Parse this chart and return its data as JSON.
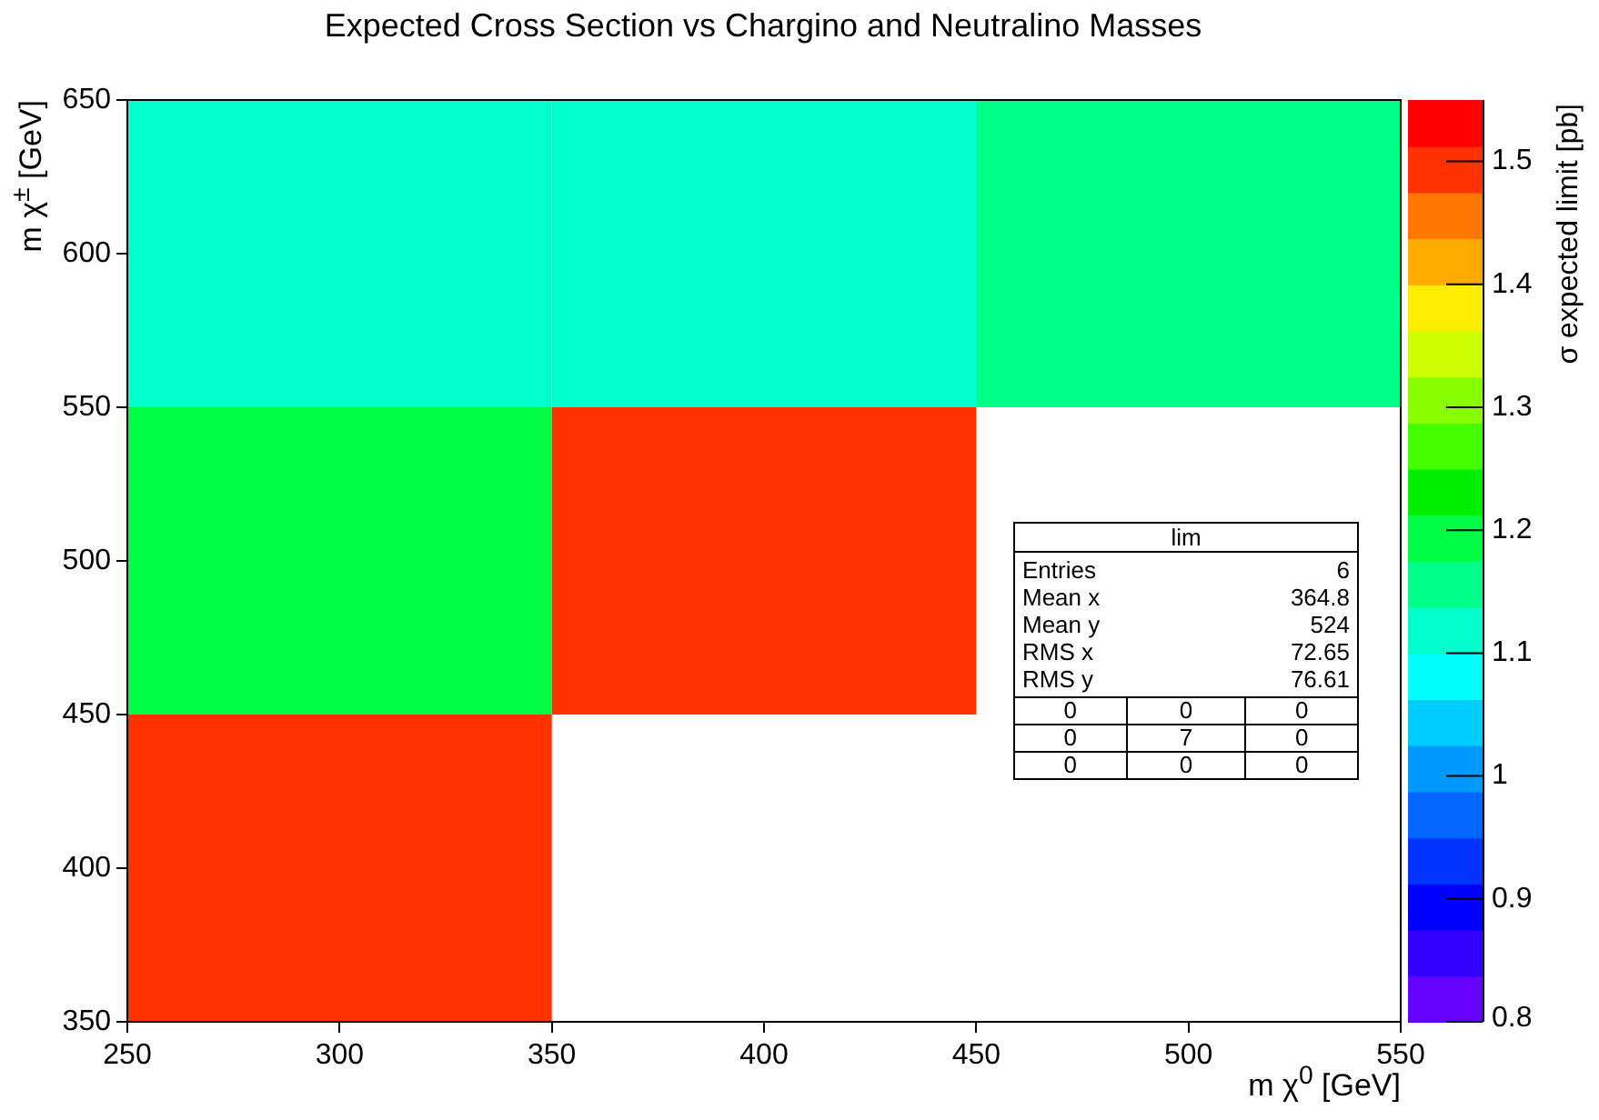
{
  "chart_data": {
    "type": "heatmap",
    "title": "Expected Cross Section vs Chargino and Neutralino Masses",
    "xlabel": "m χ$^{0}$ [GeV]",
    "ylabel": "m χ$^{±}$ [GeV]",
    "clabel": "σ expected limit [pb]",
    "x": [
      300,
      400,
      500
    ],
    "y": [
      600,
      500,
      400
    ],
    "cells": [
      [
        1.12,
        1.12,
        1.15
      ],
      [
        1.18,
        1.49,
        null
      ],
      [
        1.49,
        null,
        null
      ]
    ],
    "xlim": [
      250,
      550
    ],
    "xticks": [
      250,
      300,
      350,
      400,
      450,
      500,
      550
    ],
    "ylim": [
      350,
      650
    ],
    "yticks": [
      350,
      400,
      450,
      500,
      550,
      600,
      650
    ],
    "clim": [
      0.8,
      1.55
    ],
    "cticks": [
      0.8,
      0.9,
      1,
      1.1,
      1.2,
      1.3,
      1.4,
      1.5
    ],
    "annotations": [
      "lim",
      "Entries",
      "6",
      "Mean x",
      "364.8",
      "Mean y",
      "524",
      "RMS x",
      "72.65",
      "RMS y",
      "76.61",
      "0",
      "0",
      "0",
      "0",
      "7",
      "0",
      "0",
      "0",
      "0"
    ]
  }
}
